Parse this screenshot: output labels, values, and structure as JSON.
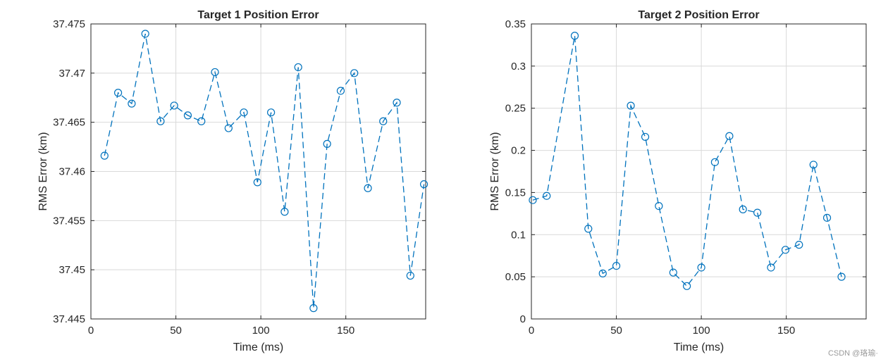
{
  "watermark": "CSDN @珞瑜·",
  "style": {
    "series_color": "#0072BD",
    "grid_color": "#d9d9d9",
    "axis_color": "#262626"
  },
  "chart_data": [
    {
      "type": "line",
      "title": "Target 1 Position Error",
      "xlabel": "Time (ms)",
      "ylabel": "RMS Error (km)",
      "xlim": [
        0,
        197
      ],
      "ylim": [
        37.445,
        37.475
      ],
      "xticks": [
        0,
        50,
        100,
        150
      ],
      "yticks": [
        37.445,
        37.45,
        37.455,
        37.46,
        37.465,
        37.47,
        37.475
      ],
      "ytick_labels": [
        "37.445",
        "37.45",
        "37.455",
        "37.46",
        "37.465",
        "37.47",
        "37.475"
      ],
      "grid": true,
      "marker": "circle",
      "line_style": "dashed",
      "series": [
        {
          "x": [
            8,
            16,
            24,
            32,
            41,
            49,
            57,
            65,
            73,
            81,
            90,
            98,
            106,
            114,
            122,
            131,
            139,
            147,
            155,
            163,
            172,
            180,
            188,
            196
          ],
          "values": [
            37.4616,
            37.468,
            37.4669,
            37.474,
            37.4651,
            37.4667,
            37.4657,
            37.4651,
            37.4701,
            37.4644,
            37.466,
            37.4589,
            37.466,
            37.4559,
            37.4706,
            37.4461,
            37.4628,
            37.4682,
            37.47,
            37.4583,
            37.4651,
            37.467,
            37.4494,
            37.4587
          ]
        }
      ]
    },
    {
      "type": "line",
      "title": "Target 2 Position Error",
      "xlabel": "Time (ms)",
      "ylabel": "RMS Error (km)",
      "xlim": [
        0,
        197
      ],
      "ylim": [
        0,
        0.35
      ],
      "xticks": [
        0,
        50,
        100,
        150
      ],
      "yticks": [
        0,
        0.05,
        0.1,
        0.15,
        0.2,
        0.25,
        0.3,
        0.35
      ],
      "ytick_labels": [
        "0",
        "0.05",
        "0.1",
        "0.15",
        "0.2",
        "0.25",
        "0.3",
        "0.35"
      ],
      "grid": true,
      "marker": "circle",
      "line_style": "dashed",
      "series": [
        {
          "x": [
            0.8,
            9,
            25.5,
            33.5,
            42,
            50,
            58.5,
            67,
            75,
            83.5,
            91.5,
            100,
            108,
            116.5,
            124.5,
            133,
            141,
            149.5,
            157.5,
            166,
            174,
            182.5
          ],
          "values": [
            0.141,
            0.146,
            0.336,
            0.107,
            0.054,
            0.063,
            0.253,
            0.216,
            0.134,
            0.055,
            0.039,
            0.061,
            0.186,
            0.217,
            0.13,
            0.126,
            0.061,
            0.082,
            0.088,
            0.183,
            0.12,
            0.05
          ]
        }
      ]
    }
  ]
}
